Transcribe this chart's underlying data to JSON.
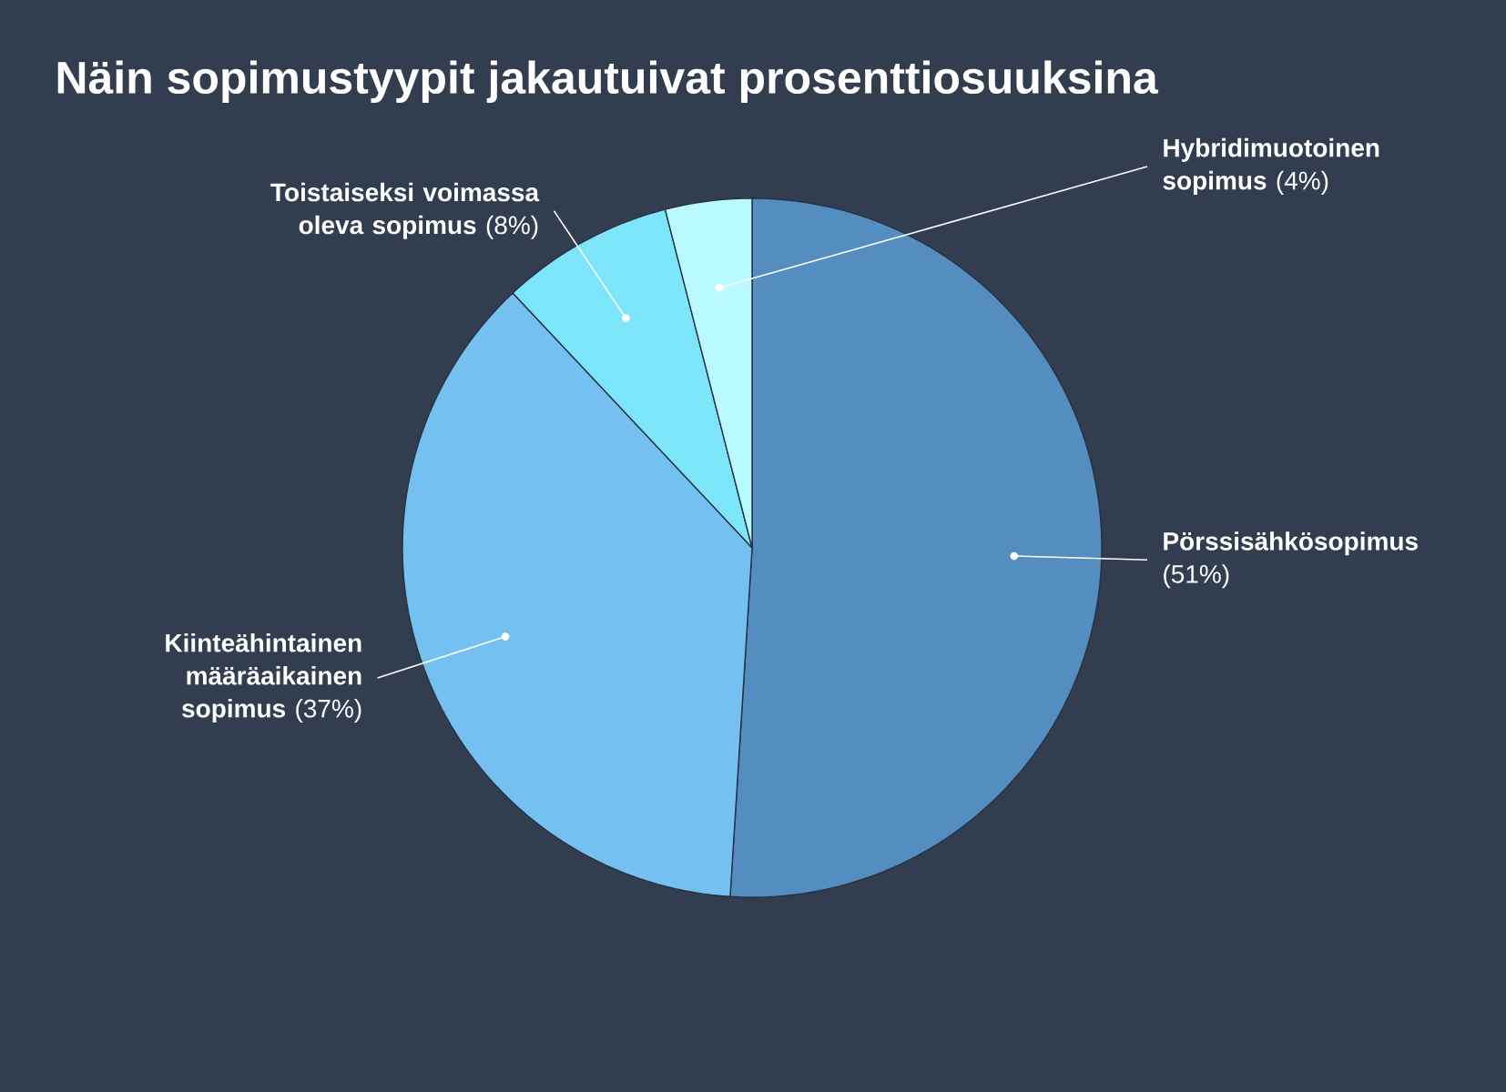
{
  "chart_data": {
    "type": "pie",
    "title": "Näin sopimustyypit jakautuivat prosenttiosuuksina",
    "categories": [
      "**Pörssisähkösopimus** (51%)",
      "**Kiinteähintainen määräaikainen sopimus** (37%)",
      "**Toistaiseksi voimassa oleva sopimus** (8%)",
      "**Hybridimuotoinen sopimus** (4%)"
    ],
    "values": [
      51,
      37,
      8,
      4
    ],
    "colors": [
      "#548dbf",
      "#74c0f1",
      "#7de5fa",
      "#b8faff"
    ]
  }
}
